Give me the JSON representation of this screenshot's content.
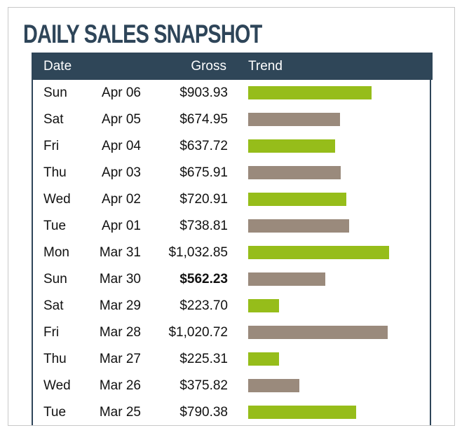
{
  "title": "DAILY SALES SNAPSHOT",
  "colors": {
    "header": "#2f4658",
    "bar_even": "#96bd1a",
    "bar_odd": "#9a8a7c",
    "title": "#2e4559"
  },
  "columns": {
    "date": "Date",
    "gross": "Gross",
    "trend": "Trend"
  },
  "rows": [
    {
      "day": "Sun",
      "date": "Apr 06",
      "gross": "$903.93",
      "value": 903.93,
      "bold": false
    },
    {
      "day": "Sat",
      "date": "Apr 05",
      "gross": "$674.95",
      "value": 674.95,
      "bold": false
    },
    {
      "day": "Fri",
      "date": "Apr 04",
      "gross": "$637.72",
      "value": 637.72,
      "bold": false
    },
    {
      "day": "Thu",
      "date": "Apr 03",
      "gross": "$675.91",
      "value": 675.91,
      "bold": false
    },
    {
      "day": "Wed",
      "date": "Apr 02",
      "gross": "$720.91",
      "value": 720.91,
      "bold": false
    },
    {
      "day": "Tue",
      "date": "Apr 01",
      "gross": "$738.81",
      "value": 738.81,
      "bold": false
    },
    {
      "day": "Mon",
      "date": "Mar 31",
      "gross": "$1,032.85",
      "value": 1032.85,
      "bold": false
    },
    {
      "day": "Sun",
      "date": "Mar 30",
      "gross": "$562.23",
      "value": 562.23,
      "bold": true
    },
    {
      "day": "Sat",
      "date": "Mar 29",
      "gross": "$223.70",
      "value": 223.7,
      "bold": false
    },
    {
      "day": "Fri",
      "date": "Mar 28",
      "gross": "$1,020.72",
      "value": 1020.72,
      "bold": false
    },
    {
      "day": "Thu",
      "date": "Mar 27",
      "gross": "$225.31",
      "value": 225.31,
      "bold": false
    },
    {
      "day": "Wed",
      "date": "Mar 26",
      "gross": "$375.82",
      "value": 375.82,
      "bold": false
    },
    {
      "day": "Tue",
      "date": "Mar 25",
      "gross": "$790.38",
      "value": 790.38,
      "bold": false
    }
  ]
}
